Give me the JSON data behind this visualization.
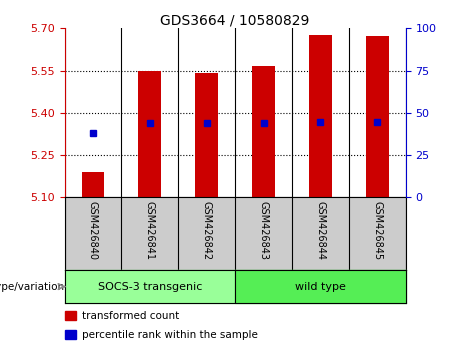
{
  "title": "GDS3664 / 10580829",
  "samples": [
    "GSM426840",
    "GSM426841",
    "GSM426842",
    "GSM426843",
    "GSM426844",
    "GSM426845"
  ],
  "bar_values": [
    5.19,
    5.548,
    5.543,
    5.565,
    5.675,
    5.673
  ],
  "bar_bottom": 5.1,
  "percentile_values": [
    5.33,
    5.365,
    5.362,
    5.362,
    5.368,
    5.368
  ],
  "ylim_left": [
    5.1,
    5.7
  ],
  "ylim_right": [
    0,
    100
  ],
  "yticks_left": [
    5.1,
    5.25,
    5.4,
    5.55,
    5.7
  ],
  "yticks_right": [
    0,
    25,
    50,
    75,
    100
  ],
  "bar_color": "#cc0000",
  "percentile_color": "#0000cc",
  "bar_width": 0.4,
  "groups": [
    {
      "label": "SOCS-3 transgenic",
      "indices": [
        0,
        1,
        2
      ],
      "color": "#99ff99"
    },
    {
      "label": "wild type",
      "indices": [
        3,
        4,
        5
      ],
      "color": "#55ee55"
    }
  ],
  "group_label": "genotype/variation",
  "legend_items": [
    {
      "label": "transformed count",
      "color": "#cc0000"
    },
    {
      "label": "percentile rank within the sample",
      "color": "#0000cc"
    }
  ],
  "tick_color_left": "#cc0000",
  "tick_color_right": "#0000cc",
  "sample_bg_color": "#cccccc",
  "plot_bg": "#ffffff",
  "title_fontsize": 10,
  "label_fontsize": 7.5,
  "legend_fontsize": 7.5
}
